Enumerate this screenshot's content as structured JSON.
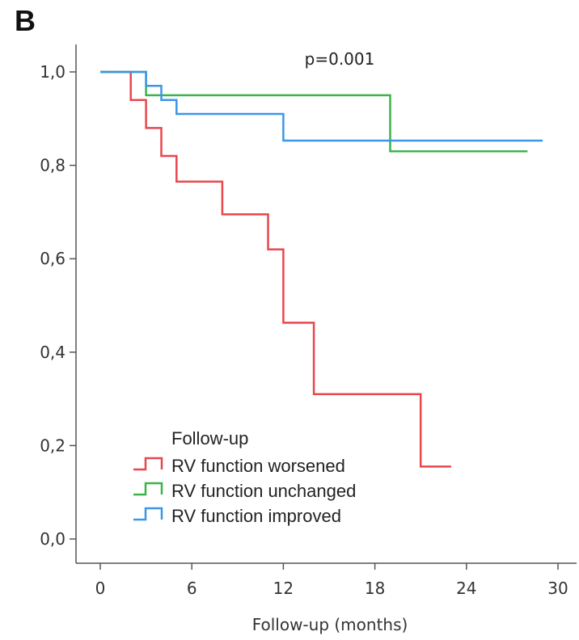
{
  "panel_label": "B",
  "chart_data": {
    "type": "line",
    "subtype": "kaplan-meier step curves",
    "annotation": "p=0.001",
    "xlabel": "Follow-up (months)",
    "ylabel": "",
    "xlim": [
      0,
      30
    ],
    "ylim": [
      0,
      1
    ],
    "x_ticks": [
      0,
      6,
      12,
      18,
      24,
      30
    ],
    "x_tick_labels": [
      "0",
      "6",
      "12",
      "18",
      "24",
      "30"
    ],
    "y_ticks": [
      0,
      0.2,
      0.4,
      0.6,
      0.8,
      1.0
    ],
    "y_tick_labels": [
      "0,0",
      "0,2",
      "0,4",
      "0,6",
      "0,8",
      "1,0"
    ],
    "grid": false,
    "legend": {
      "title": "Follow-up",
      "placement": "bottom-left"
    },
    "series": [
      {
        "name": "RV function worsened",
        "color": "#e8474d",
        "points": [
          [
            0,
            1.0
          ],
          [
            2,
            1.0
          ],
          [
            2,
            0.94
          ],
          [
            3,
            0.94
          ],
          [
            3,
            0.88
          ],
          [
            4,
            0.88
          ],
          [
            4,
            0.82
          ],
          [
            5,
            0.82
          ],
          [
            5,
            0.765
          ],
          [
            8,
            0.765
          ],
          [
            8,
            0.695
          ],
          [
            11,
            0.695
          ],
          [
            11,
            0.62
          ],
          [
            12,
            0.62
          ],
          [
            12,
            0.463
          ],
          [
            14,
            0.463
          ],
          [
            14,
            0.31
          ],
          [
            21,
            0.31
          ],
          [
            21,
            0.155
          ],
          [
            23,
            0.155
          ]
        ]
      },
      {
        "name": "RV function unchanged",
        "color": "#3cb44b",
        "points": [
          [
            0,
            1.0
          ],
          [
            3,
            1.0
          ],
          [
            3,
            0.95
          ],
          [
            19,
            0.95
          ],
          [
            19,
            0.83
          ],
          [
            28,
            0.83
          ]
        ]
      },
      {
        "name": "RV function improved",
        "color": "#3c96e8",
        "points": [
          [
            0,
            1.0
          ],
          [
            3,
            1.0
          ],
          [
            3,
            0.97
          ],
          [
            4,
            0.97
          ],
          [
            4,
            0.94
          ],
          [
            5,
            0.94
          ],
          [
            5,
            0.91
          ],
          [
            12,
            0.91
          ],
          [
            12,
            0.853
          ],
          [
            29,
            0.853
          ]
        ]
      }
    ]
  }
}
